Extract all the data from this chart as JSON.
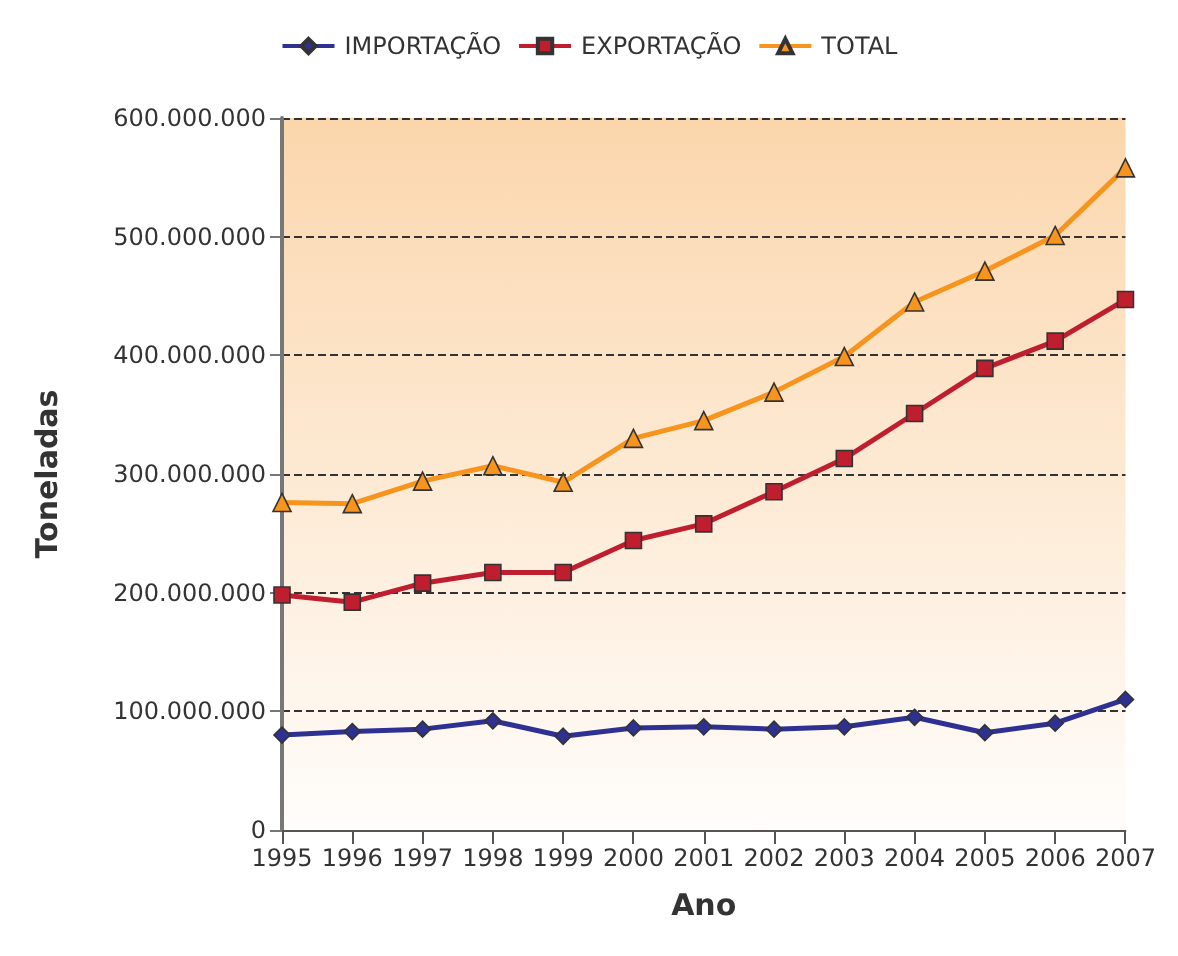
{
  "chart_data": {
    "type": "line",
    "xlabel": "Ano",
    "ylabel": "Toneladas",
    "categories": [
      "1995",
      "1996",
      "1997",
      "1998",
      "1999",
      "2000",
      "2001",
      "2002",
      "2003",
      "2004",
      "2005",
      "2006",
      "2007"
    ],
    "series": [
      {
        "name": "IMPORTAÇÃO",
        "color": "#2e3192",
        "marker": "diamond",
        "values": [
          80000000,
          83000000,
          85000000,
          92000000,
          79000000,
          86000000,
          87000000,
          85000000,
          87000000,
          95000000,
          82000000,
          90000000,
          110000000
        ]
      },
      {
        "name": "EXPORTAÇÃO",
        "color": "#be1e2d",
        "marker": "square",
        "values": [
          198000000,
          192000000,
          208000000,
          217000000,
          217000000,
          244000000,
          258000000,
          285000000,
          313000000,
          351000000,
          389000000,
          412000000,
          447000000
        ]
      },
      {
        "name": "TOTAL",
        "color": "#f7941d",
        "marker": "triangle",
        "values": [
          276000000,
          275000000,
          294000000,
          307000000,
          293000000,
          330000000,
          345000000,
          369000000,
          399000000,
          445000000,
          471000000,
          501000000,
          558000000
        ]
      }
    ],
    "ylim": [
      0,
      600000000
    ],
    "yticks": [
      0,
      {
        "value": 100000000,
        "label": "100.000.000"
      },
      {
        "value": 200000000,
        "label": "200.000.000"
      },
      {
        "value": 300000000,
        "label": "300.000.000"
      },
      {
        "value": 400000000,
        "label": "400.000.000"
      },
      {
        "value": 500000000,
        "label": "500.000.000"
      },
      {
        "value": 600000000,
        "label": "600.000.000"
      }
    ],
    "grid": "y",
    "legend": "top",
    "line_style": "solid"
  }
}
